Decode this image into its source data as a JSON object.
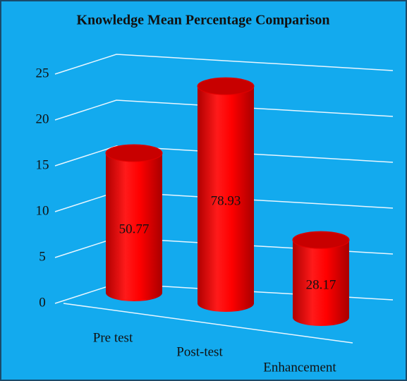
{
  "chart_data": {
    "type": "bar",
    "title": "Knowledge Mean Percentage Comparison",
    "categories": [
      "Pre test",
      "Post-test",
      "Enhancement"
    ],
    "values": [
      15.23,
      23.68,
      8.45
    ],
    "value_labels": [
      "50.77",
      "78.93",
      "28.17"
    ],
    "color": "#ff0000",
    "ylim": [
      0,
      25
    ],
    "yticks": [
      0,
      5,
      10,
      15,
      20,
      25
    ],
    "grid": true
  }
}
